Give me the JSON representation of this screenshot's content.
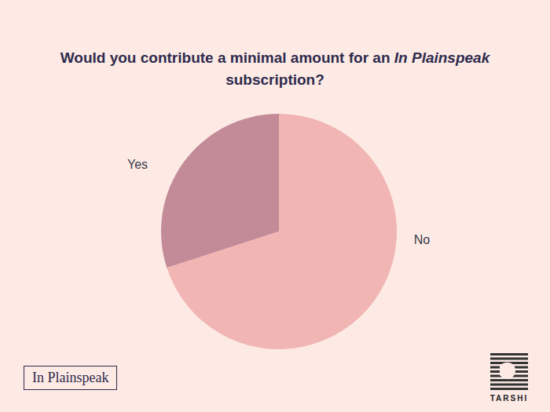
{
  "chart_data": {
    "type": "pie",
    "title": "Would you contribute a minimal amount for an In Plainspeak subscription?",
    "categories": [
      "Yes",
      "No"
    ],
    "values": [
      30,
      70
    ],
    "colors": [
      "#c38a98",
      "#f1b5b3"
    ],
    "annotations": [
      "In Plainspeak",
      "TARSHI"
    ]
  }
}
